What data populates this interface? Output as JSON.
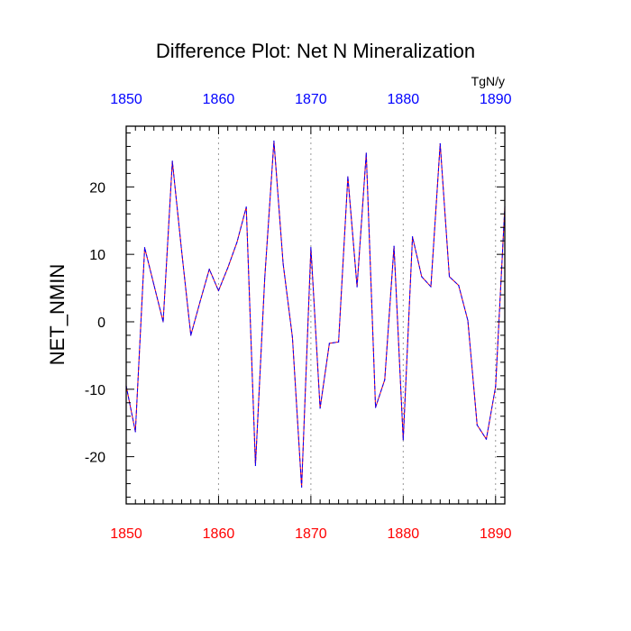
{
  "chart_data": {
    "type": "line",
    "title": "Difference Plot: Net N Mineralization",
    "xlabel": "",
    "ylabel": "NET_NMIN",
    "units": "TgN/y",
    "xlim": [
      1850,
      1891
    ],
    "ylim": [
      -27,
      29
    ],
    "x_ticks": [
      1850,
      1860,
      1870,
      1880,
      1890
    ],
    "y_ticks": [
      -20,
      -10,
      0,
      10,
      20
    ],
    "x_grid": "dotted vertical lines",
    "colors": {
      "bottom_axis_labels": "#ff0000",
      "top_axis_labels": "#0000ff",
      "series_primary": "#0000ff",
      "series_secondary": "#ff0000",
      "grid": "#999999"
    },
    "series": [
      {
        "name": "NET_NMIN",
        "style": "dashed",
        "x": [
          1850,
          1851,
          1852,
          1853,
          1854,
          1855,
          1856,
          1857,
          1858,
          1859,
          1860,
          1861,
          1862,
          1863,
          1864,
          1865,
          1866,
          1867,
          1868,
          1869,
          1870,
          1871,
          1872,
          1873,
          1874,
          1875,
          1876,
          1877,
          1878,
          1879,
          1880,
          1881,
          1882,
          1883,
          1884,
          1885,
          1886,
          1887,
          1888,
          1889,
          1890,
          1891
        ],
        "values": [
          -9.5,
          -16.3,
          11.0,
          5.5,
          0.0,
          23.8,
          10.5,
          -2.0,
          3.0,
          7.8,
          4.6,
          8.0,
          11.8,
          17.0,
          -21.3,
          6.5,
          26.8,
          8.6,
          -2.3,
          -24.5,
          11.0,
          -12.8,
          -3.2,
          -3.0,
          21.5,
          5.2,
          25.0,
          -12.7,
          -8.6,
          11.2,
          -17.5,
          12.6,
          6.7,
          5.2,
          26.4,
          6.7,
          5.4,
          0.2,
          -15.3,
          -17.4,
          -9.6,
          17.0
        ]
      }
    ]
  }
}
